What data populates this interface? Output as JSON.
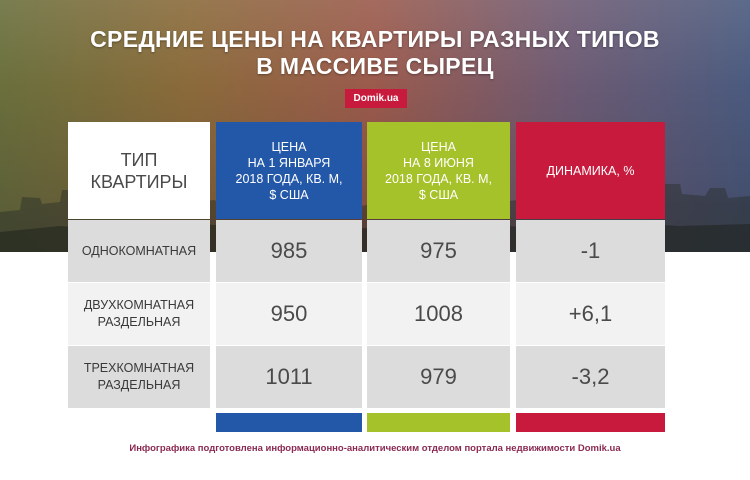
{
  "title_line1": "СРЕДНИЕ ЦЕНЫ НА КВАРТИРЫ РАЗНЫХ ТИПОВ",
  "title_line2": "В МАССИВЕ СЫРЕЦ",
  "logo": "Domik.ua",
  "footer": "Инфографика подготовлена информационно-аналитическим отделом портала недвижимости Domik.ua",
  "colors": {
    "col2_head": "#2358a8",
    "col3_head": "#a5c22a",
    "col4_head": "#c81a3d",
    "cell_light": "#f2f2f2",
    "cell_dark": "#dcdcdc"
  },
  "chart_data": {
    "type": "table",
    "columns": [
      [
        "ТИП",
        "КВАРТИРЫ"
      ],
      [
        "ЦЕНА",
        "НА 1 ЯНВАРЯ",
        "2018 ГОДА, КВ. М,",
        "$ США"
      ],
      [
        "ЦЕНА",
        "НА 8 ИЮНЯ",
        "2018 ГОДА, КВ. М,",
        "$ США"
      ],
      [
        "ДИНАМИКА, %"
      ]
    ],
    "rows": [
      {
        "type": [
          "ОДНОКОМНАТНАЯ"
        ],
        "price_jan": "985",
        "price_jun": "975",
        "change": "-1"
      },
      {
        "type": [
          "ДВУХКОМНАТНАЯ",
          "РАЗДЕЛЬНАЯ"
        ],
        "price_jan": "950",
        "price_jun": "1008",
        "change": "+6,1"
      },
      {
        "type": [
          "ТРЕХКОМНАТНАЯ",
          "РАЗДЕЛЬНАЯ"
        ],
        "price_jan": "1011",
        "price_jun": "979",
        "change": "-3,2"
      }
    ]
  }
}
